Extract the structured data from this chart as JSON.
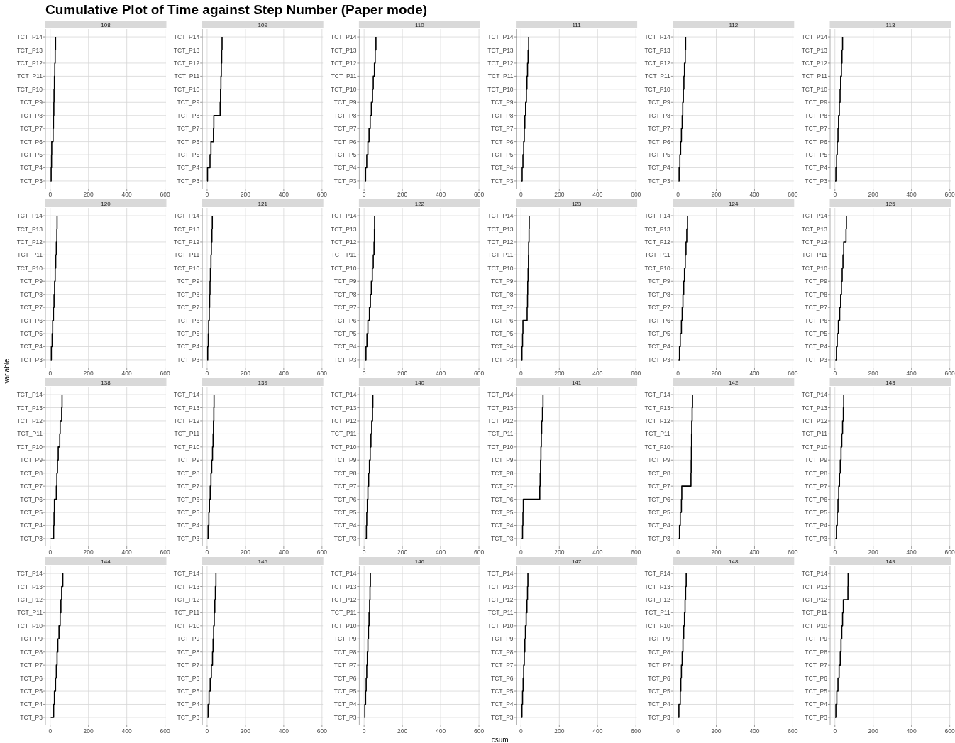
{
  "chart_data": [
    {
      "type": "step",
      "title": "Cumulative Plot of Time against Step Number (Paper mode)",
      "subtitle": "108",
      "orientation": "horizontal",
      "categories": [
        "TCT_P14",
        "TCT_P13",
        "TCT_P12",
        "TCT_P11",
        "TCT_P10",
        "TCT_P9",
        "TCT_P8",
        "TCT_P7",
        "TCT_P6",
        "TCT_P5",
        "TCT_P4",
        "TCT_P3"
      ],
      "values": [
        28,
        26,
        24,
        22,
        20,
        19,
        17,
        15,
        8,
        7,
        5,
        2
      ],
      "color": "#000000",
      "xlim": [
        -25,
        605
      ],
      "xticks": [
        0,
        200,
        400,
        600
      ],
      "grid": true
    },
    {
      "type": "step",
      "subtitle": "109",
      "orientation": "horizontal",
      "categories": [
        "TCT_P14",
        "TCT_P13",
        "TCT_P12",
        "TCT_P11",
        "TCT_P10",
        "TCT_P9",
        "TCT_P8",
        "TCT_P7",
        "TCT_P6",
        "TCT_P5",
        "TCT_P4",
        "TCT_P3"
      ],
      "values": [
        78,
        76,
        74,
        72,
        70,
        68,
        35,
        33,
        20,
        15,
        2,
        0
      ],
      "color": "#000000",
      "xlim": [
        -25,
        605
      ],
      "xticks": [
        0,
        200,
        400,
        600
      ],
      "grid": true
    },
    {
      "type": "step",
      "subtitle": "110",
      "orientation": "horizontal",
      "categories": [
        "TCT_P14",
        "TCT_P13",
        "TCT_P12",
        "TCT_P11",
        "TCT_P10",
        "TCT_P9",
        "TCT_P8",
        "TCT_P7",
        "TCT_P6",
        "TCT_P5",
        "TCT_P4",
        "TCT_P3"
      ],
      "values": [
        62,
        58,
        54,
        48,
        44,
        38,
        32,
        26,
        20,
        14,
        8,
        3
      ],
      "color": "#000000",
      "xlim": [
        -25,
        605
      ],
      "xticks": [
        0,
        200,
        400,
        600
      ],
      "grid": true
    },
    {
      "type": "step",
      "subtitle": "111",
      "orientation": "horizontal",
      "categories": [
        "TCT_P14",
        "TCT_P13",
        "TCT_P12",
        "TCT_P11",
        "TCT_P10",
        "TCT_P9",
        "TCT_P8",
        "TCT_P7",
        "TCT_P6",
        "TCT_P5",
        "TCT_P4",
        "TCT_P3"
      ],
      "values": [
        40,
        37,
        34,
        31,
        28,
        24,
        20,
        17,
        14,
        10,
        6,
        2
      ],
      "color": "#000000",
      "xlim": [
        -25,
        605
      ],
      "xticks": [
        0,
        200,
        400,
        600
      ],
      "grid": true
    },
    {
      "type": "step",
      "subtitle": "112",
      "orientation": "horizontal",
      "categories": [
        "TCT_P14",
        "TCT_P13",
        "TCT_P12",
        "TCT_P11",
        "TCT_P10",
        "TCT_P9",
        "TCT_P8",
        "TCT_P7",
        "TCT_P6",
        "TCT_P5",
        "TCT_P4",
        "TCT_P3"
      ],
      "values": [
        40,
        38,
        34,
        31,
        28,
        25,
        22,
        18,
        14,
        10,
        6,
        3
      ],
      "color": "#000000",
      "xlim": [
        -25,
        605
      ],
      "xticks": [
        0,
        200,
        400,
        600
      ],
      "grid": true
    },
    {
      "type": "step",
      "subtitle": "113",
      "orientation": "horizontal",
      "categories": [
        "TCT_P14",
        "TCT_P13",
        "TCT_P12",
        "TCT_P11",
        "TCT_P10",
        "TCT_P9",
        "TCT_P8",
        "TCT_P7",
        "TCT_P6",
        "TCT_P5",
        "TCT_P4",
        "TCT_P3"
      ],
      "values": [
        40,
        37,
        34,
        30,
        27,
        23,
        19,
        16,
        12,
        9,
        5,
        1
      ],
      "color": "#000000",
      "xlim": [
        -25,
        605
      ],
      "xticks": [
        0,
        200,
        400,
        600
      ],
      "grid": true
    },
    {
      "type": "step",
      "subtitle": "120",
      "orientation": "horizontal",
      "categories": [
        "TCT_P14",
        "TCT_P13",
        "TCT_P12",
        "TCT_P11",
        "TCT_P10",
        "TCT_P9",
        "TCT_P8",
        "TCT_P7",
        "TCT_P6",
        "TCT_P5",
        "TCT_P4",
        "TCT_P3"
      ],
      "values": [
        36,
        35,
        32,
        29,
        26,
        23,
        20,
        17,
        13,
        10,
        6,
        3
      ],
      "color": "#000000",
      "xlim": [
        -25,
        605
      ],
      "xticks": [
        0,
        200,
        400,
        600
      ],
      "grid": true
    },
    {
      "type": "step",
      "subtitle": "121",
      "orientation": "horizontal",
      "categories": [
        "TCT_P14",
        "TCT_P13",
        "TCT_P12",
        "TCT_P11",
        "TCT_P10",
        "TCT_P9",
        "TCT_P8",
        "TCT_P7",
        "TCT_P6",
        "TCT_P5",
        "TCT_P4",
        "TCT_P3"
      ],
      "values": [
        27,
        25,
        22,
        20,
        17,
        15,
        13,
        11,
        8,
        6,
        3,
        1
      ],
      "color": "#000000",
      "xlim": [
        -25,
        605
      ],
      "xticks": [
        0,
        200,
        400,
        600
      ],
      "grid": true
    },
    {
      "type": "step",
      "subtitle": "122",
      "orientation": "horizontal",
      "categories": [
        "TCT_P14",
        "TCT_P13",
        "TCT_P12",
        "TCT_P11",
        "TCT_P10",
        "TCT_P9",
        "TCT_P8",
        "TCT_P7",
        "TCT_P6",
        "TCT_P5",
        "TCT_P4",
        "TCT_P3"
      ],
      "values": [
        55,
        54,
        52,
        48,
        43,
        38,
        33,
        28,
        20,
        15,
        10,
        5
      ],
      "color": "#000000",
      "xlim": [
        -25,
        605
      ],
      "xticks": [
        0,
        200,
        400,
        600
      ],
      "grid": true
    },
    {
      "type": "step",
      "subtitle": "123",
      "orientation": "horizontal",
      "categories": [
        "TCT_P14",
        "TCT_P13",
        "TCT_P12",
        "TCT_P11",
        "TCT_P10",
        "TCT_P9",
        "TCT_P8",
        "TCT_P7",
        "TCT_P6",
        "TCT_P5",
        "TCT_P4",
        "TCT_P3"
      ],
      "values": [
        43,
        42,
        40,
        39,
        37,
        35,
        34,
        32,
        10,
        8,
        5,
        2
      ],
      "color": "#000000",
      "xlim": [
        -25,
        605
      ],
      "xticks": [
        0,
        200,
        400,
        600
      ],
      "grid": true
    },
    {
      "type": "step",
      "subtitle": "124",
      "orientation": "horizontal",
      "categories": [
        "TCT_P14",
        "TCT_P13",
        "TCT_P12",
        "TCT_P11",
        "TCT_P10",
        "TCT_P9",
        "TCT_P8",
        "TCT_P7",
        "TCT_P6",
        "TCT_P5",
        "TCT_P4",
        "TCT_P3"
      ],
      "values": [
        50,
        46,
        42,
        38,
        34,
        30,
        26,
        22,
        18,
        12,
        8,
        3
      ],
      "color": "#000000",
      "xlim": [
        -25,
        605
      ],
      "xticks": [
        0,
        200,
        400,
        600
      ],
      "grid": true
    },
    {
      "type": "step",
      "subtitle": "125",
      "orientation": "horizontal",
      "categories": [
        "TCT_P14",
        "TCT_P13",
        "TCT_P12",
        "TCT_P11",
        "TCT_P10",
        "TCT_P9",
        "TCT_P8",
        "TCT_P7",
        "TCT_P6",
        "TCT_P5",
        "TCT_P4",
        "TCT_P3"
      ],
      "values": [
        60,
        58,
        46,
        42,
        38,
        34,
        30,
        25,
        18,
        12,
        8,
        2
      ],
      "color": "#000000",
      "xlim": [
        -25,
        605
      ],
      "xticks": [
        0,
        200,
        400,
        600
      ],
      "grid": true
    },
    {
      "type": "step",
      "ylabel": "variable",
      "subtitle": "138",
      "orientation": "horizontal",
      "categories": [
        "TCT_P14",
        "TCT_P13",
        "TCT_P12",
        "TCT_P11",
        "TCT_P10",
        "TCT_P9",
        "TCT_P8",
        "TCT_P7",
        "TCT_P6",
        "TCT_P5",
        "TCT_P4",
        "TCT_P3"
      ],
      "values": [
        62,
        60,
        52,
        50,
        42,
        38,
        35,
        32,
        22,
        20,
        18,
        3
      ],
      "color": "#000000",
      "xlim": [
        -25,
        605
      ],
      "xticks": [
        0,
        200,
        400,
        600
      ],
      "grid": true
    },
    {
      "type": "step",
      "subtitle": "139",
      "orientation": "horizontal",
      "categories": [
        "TCT_P14",
        "TCT_P13",
        "TCT_P12",
        "TCT_P11",
        "TCT_P10",
        "TCT_P9",
        "TCT_P8",
        "TCT_P7",
        "TCT_P6",
        "TCT_P5",
        "TCT_P4",
        "TCT_P3"
      ],
      "values": [
        36,
        35,
        33,
        31,
        28,
        24,
        20,
        16,
        12,
        9,
        5,
        1
      ],
      "color": "#000000",
      "xlim": [
        -25,
        605
      ],
      "xticks": [
        0,
        200,
        400,
        600
      ],
      "grid": true
    },
    {
      "type": "step",
      "subtitle": "140",
      "orientation": "horizontal",
      "categories": [
        "TCT_P14",
        "TCT_P13",
        "TCT_P12",
        "TCT_P11",
        "TCT_P10",
        "TCT_P9",
        "TCT_P8",
        "TCT_P7",
        "TCT_P6",
        "TCT_P5",
        "TCT_P4",
        "TCT_P3"
      ],
      "values": [
        46,
        44,
        40,
        36,
        32,
        28,
        24,
        20,
        17,
        14,
        12,
        3
      ],
      "color": "#000000",
      "xlim": [
        -25,
        605
      ],
      "xticks": [
        0,
        200,
        400,
        600
      ],
      "grid": true
    },
    {
      "type": "step",
      "subtitle": "141",
      "orientation": "horizontal",
      "categories": [
        "TCT_P14",
        "TCT_P13",
        "TCT_P12",
        "TCT_P11",
        "TCT_P10",
        "TCT_P9",
        "TCT_P8",
        "TCT_P7",
        "TCT_P6",
        "TCT_P5",
        "TCT_P4",
        "TCT_P3"
      ],
      "values": [
        115,
        112,
        108,
        106,
        104,
        102,
        100,
        98,
        12,
        10,
        8,
        3
      ],
      "color": "#000000",
      "xlim": [
        -25,
        605
      ],
      "xticks": [
        0,
        200,
        400,
        600
      ],
      "grid": true
    },
    {
      "type": "step",
      "subtitle": "142",
      "orientation": "horizontal",
      "categories": [
        "TCT_P14",
        "TCT_P13",
        "TCT_P12",
        "TCT_P11",
        "TCT_P10",
        "TCT_P9",
        "TCT_P8",
        "TCT_P7",
        "TCT_P6",
        "TCT_P5",
        "TCT_P4",
        "TCT_P3"
      ],
      "values": [
        76,
        74,
        72,
        71,
        70,
        69,
        68,
        20,
        18,
        12,
        8,
        3
      ],
      "color": "#000000",
      "xlim": [
        -25,
        605
      ],
      "xticks": [
        0,
        200,
        400,
        600
      ],
      "grid": true
    },
    {
      "type": "step",
      "subtitle": "143",
      "orientation": "horizontal",
      "categories": [
        "TCT_P14",
        "TCT_P13",
        "TCT_P12",
        "TCT_P11",
        "TCT_P10",
        "TCT_P9",
        "TCT_P8",
        "TCT_P7",
        "TCT_P6",
        "TCT_P5",
        "TCT_P4",
        "TCT_P3"
      ],
      "values": [
        46,
        44,
        40,
        36,
        32,
        28,
        24,
        20,
        16,
        12,
        8,
        2
      ],
      "color": "#000000",
      "xlim": [
        -25,
        605
      ],
      "xticks": [
        0,
        200,
        400,
        600
      ],
      "grid": true
    },
    {
      "type": "step",
      "subtitle": "144",
      "orientation": "horizontal",
      "categories": [
        "TCT_P14",
        "TCT_P13",
        "TCT_P12",
        "TCT_P11",
        "TCT_P10",
        "TCT_P9",
        "TCT_P8",
        "TCT_P7",
        "TCT_P6",
        "TCT_P5",
        "TCT_P4",
        "TCT_P3"
      ],
      "values": [
        66,
        60,
        56,
        52,
        46,
        40,
        36,
        32,
        28,
        22,
        18,
        3
      ],
      "color": "#000000",
      "xlim": [
        -25,
        605
      ],
      "xticks": [
        0,
        200,
        400,
        600
      ],
      "grid": true
    },
    {
      "type": "step",
      "subtitle": "145",
      "orientation": "horizontal",
      "categories": [
        "TCT_P14",
        "TCT_P13",
        "TCT_P12",
        "TCT_P11",
        "TCT_P10",
        "TCT_P9",
        "TCT_P8",
        "TCT_P7",
        "TCT_P6",
        "TCT_P5",
        "TCT_P4",
        "TCT_P3"
      ],
      "values": [
        46,
        43,
        40,
        37,
        34,
        31,
        28,
        22,
        16,
        10,
        5,
        1
      ],
      "color": "#000000",
      "xlim": [
        -25,
        605
      ],
      "xticks": [
        0,
        200,
        400,
        600
      ],
      "grid": true
    },
    {
      "type": "step",
      "subtitle": "146",
      "orientation": "horizontal",
      "categories": [
        "TCT_P14",
        "TCT_P13",
        "TCT_P12",
        "TCT_P11",
        "TCT_P10",
        "TCT_P9",
        "TCT_P8",
        "TCT_P7",
        "TCT_P6",
        "TCT_P5",
        "TCT_P4",
        "TCT_P3"
      ],
      "values": [
        33,
        31,
        29,
        26,
        23,
        20,
        17,
        14,
        11,
        8,
        4,
        1
      ],
      "color": "#000000",
      "xlim": [
        -25,
        605
      ],
      "xticks": [
        0,
        200,
        400,
        600
      ],
      "grid": true
    },
    {
      "type": "step",
      "xlabel": "csum",
      "subtitle": "147",
      "orientation": "horizontal",
      "categories": [
        "TCT_P14",
        "TCT_P13",
        "TCT_P12",
        "TCT_P11",
        "TCT_P10",
        "TCT_P9",
        "TCT_P8",
        "TCT_P7",
        "TCT_P6",
        "TCT_P5",
        "TCT_P4",
        "TCT_P3"
      ],
      "values": [
        36,
        34,
        31,
        27,
        23,
        20,
        17,
        14,
        11,
        8,
        5,
        1
      ],
      "color": "#000000",
      "xlim": [
        -25,
        605
      ],
      "xticks": [
        0,
        200,
        400,
        600
      ],
      "grid": true
    },
    {
      "type": "step",
      "subtitle": "148",
      "orientation": "horizontal",
      "categories": [
        "TCT_P14",
        "TCT_P13",
        "TCT_P12",
        "TCT_P11",
        "TCT_P10",
        "TCT_P9",
        "TCT_P8",
        "TCT_P7",
        "TCT_P6",
        "TCT_P5",
        "TCT_P4",
        "TCT_P3"
      ],
      "values": [
        43,
        40,
        37,
        34,
        30,
        26,
        22,
        18,
        15,
        12,
        5,
        2
      ],
      "color": "#000000",
      "xlim": [
        -25,
        605
      ],
      "xticks": [
        0,
        200,
        400,
        600
      ],
      "grid": true
    },
    {
      "type": "step",
      "subtitle": "149",
      "orientation": "horizontal",
      "categories": [
        "TCT_P14",
        "TCT_P13",
        "TCT_P12",
        "TCT_P11",
        "TCT_P10",
        "TCT_P9",
        "TCT_P8",
        "TCT_P7",
        "TCT_P6",
        "TCT_P5",
        "TCT_P4",
        "TCT_P3"
      ],
      "values": [
        69,
        68,
        44,
        40,
        36,
        32,
        28,
        22,
        16,
        10,
        5,
        1
      ],
      "color": "#000000",
      "xlim": [
        -25,
        605
      ],
      "xticks": [
        0,
        200,
        400,
        600
      ],
      "grid": true
    }
  ]
}
